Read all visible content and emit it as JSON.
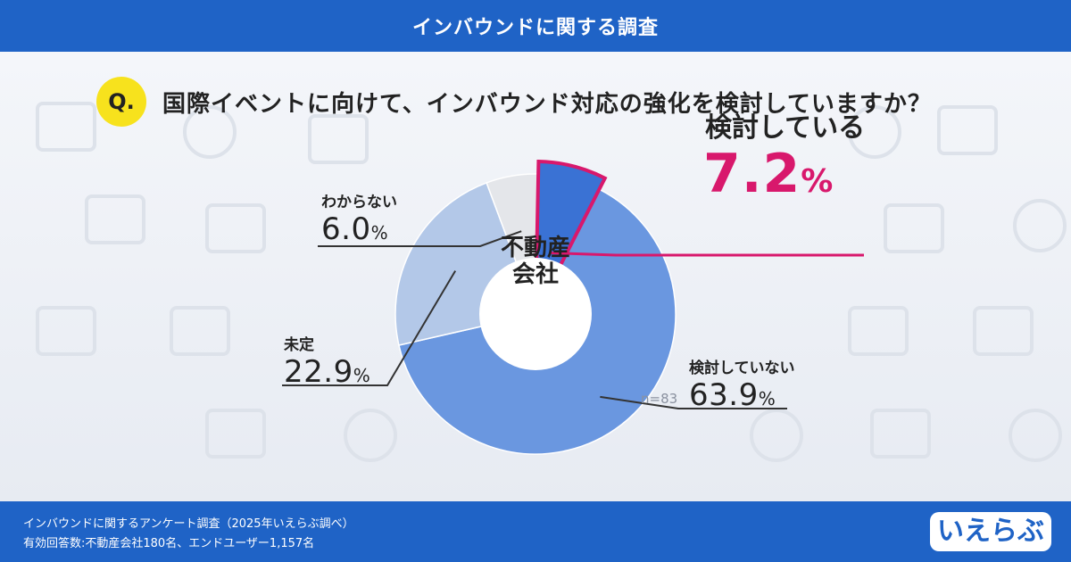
{
  "header": {
    "title": "インバウンドに関する調査"
  },
  "question": {
    "badge": "Q.",
    "text": "国際イベントに向けて、インバウンド対応の強化を検討していますか？"
  },
  "chart_data": {
    "type": "pie",
    "center_label": [
      "不動産",
      "会社"
    ],
    "note": "n=83",
    "unit": "%",
    "slices": [
      {
        "label": "検討している",
        "value": 7.2,
        "value_text": "7.2",
        "color": "#3a72d4",
        "highlight": true
      },
      {
        "label": "検討していない",
        "value": 63.9,
        "value_text": "63.9",
        "color": "#6a97e0"
      },
      {
        "label": "未定",
        "value": 22.9,
        "value_text": "22.9",
        "color": "#b3c8e8"
      },
      {
        "label": "わからない",
        "value": 6.0,
        "value_text": "6.0",
        "color": "#e4e6ea"
      }
    ],
    "highlight_color": "#d8186c"
  },
  "footer": {
    "line1": "インバウンドに関するアンケート調査（2025年いえらぶ調べ）",
    "line2": "有効回答数:不動産会社180名、エンドユーザー1,157名"
  },
  "logo": {
    "text": "いえらぶ"
  }
}
